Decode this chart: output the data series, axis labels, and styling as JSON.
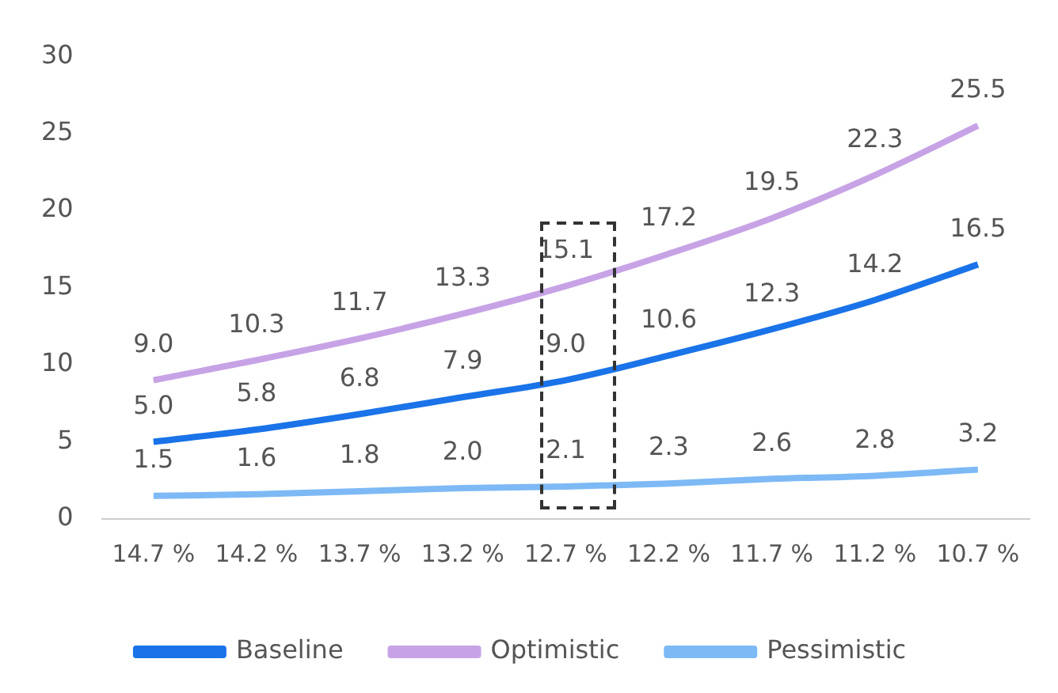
{
  "chart_data": {
    "type": "line",
    "categories": [
      "14.7 %",
      "14.2 %",
      "13.7 %",
      "13.2 %",
      "12.7 %",
      "12.2 %",
      "11.7 %",
      "11.2 %",
      "10.7 %"
    ],
    "series": [
      {
        "name": "Baseline",
        "color": "#1a73e8",
        "values": [
          5.0,
          5.8,
          6.8,
          7.9,
          9.0,
          10.6,
          12.3,
          14.2,
          16.5
        ],
        "value_labels": [
          "5.0",
          "5.8",
          "6.8",
          "7.9",
          "9.0",
          "10.6",
          "12.3",
          "14.2",
          "16.5"
        ]
      },
      {
        "name": "Optimistic",
        "color": "#c7a3e6",
        "values": [
          9.0,
          10.3,
          11.7,
          13.3,
          15.1,
          17.2,
          19.5,
          22.3,
          25.5
        ],
        "value_labels": [
          "9.0",
          "10.3",
          "11.7",
          "13.3",
          "15.1",
          "17.2",
          "19.5",
          "22.3",
          "25.5"
        ]
      },
      {
        "name": "Pessimistic",
        "color": "#7db9f5",
        "values": [
          1.5,
          1.6,
          1.8,
          2.0,
          2.1,
          2.3,
          2.6,
          2.8,
          3.2
        ],
        "value_labels": [
          "1.5",
          "1.6",
          "1.8",
          "2.0",
          "2.1",
          "2.3",
          "2.6",
          "2.8",
          "3.2"
        ]
      }
    ],
    "ylim": [
      0,
      30
    ],
    "yticks": [
      0,
      5,
      10,
      15,
      20,
      25,
      30
    ],
    "grid": false,
    "legend": "bottom",
    "marker": "none",
    "line_style": "solid"
  }
}
